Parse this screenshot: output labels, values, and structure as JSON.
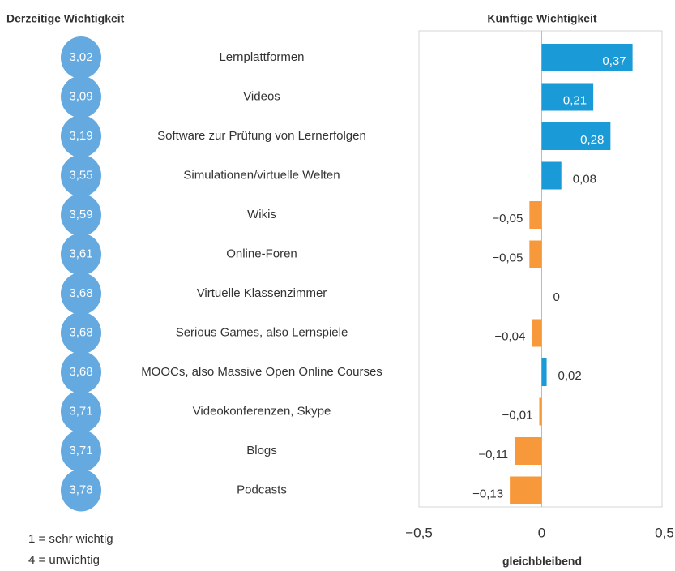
{
  "chart_data": [
    {
      "type": "dot",
      "title": "Derzeitige Wichtigkeit",
      "categories": [
        "Lernplattformen",
        "Videos",
        "Software zur Prüfung von Lernerfolgen",
        "Simulationen/virtuelle Welten",
        "Wikis",
        "Online-Foren",
        "Virtuelle Klassenzimmer",
        "Serious Games, also Lernspiele",
        "MOOCs, also Massive Open Online Courses",
        "Videokonferenzen, Skype",
        "Blogs",
        "Podcasts"
      ],
      "values": [
        3.02,
        3.09,
        3.19,
        3.55,
        3.59,
        3.61,
        3.68,
        3.68,
        3.68,
        3.71,
        3.71,
        3.78
      ],
      "value_labels": [
        "3,02",
        "3,09",
        "3,19",
        "3,55",
        "3,59",
        "3,61",
        "3,68",
        "3,68",
        "3,68",
        "3,71",
        "3,71",
        "3,78"
      ],
      "color": "#64a9e0",
      "notes": [
        "1 = sehr wichtig",
        "4 = unwichtig"
      ]
    },
    {
      "type": "bar",
      "orientation": "horizontal",
      "title": "Künftige Wichtigkeit",
      "xlabel": "gleichbleibend",
      "values": [
        0.37,
        0.21,
        0.28,
        0.08,
        -0.05,
        -0.05,
        0,
        -0.04,
        0.02,
        -0.01,
        -0.11,
        -0.13
      ],
      "value_labels": [
        "0,37",
        "0,21",
        "0,28",
        "0,08",
        "−0,05",
        "−0,05",
        "0",
        "−0,04",
        "0,02",
        "−0,01",
        "−0,11",
        "−0,13"
      ],
      "positive_color": "#1a9ad6",
      "negative_color": "#f7993a",
      "xlim": [
        -0.5,
        0.5
      ],
      "xticks": [
        {
          "value": -0.5,
          "label": "−0,5"
        },
        0,
        {
          "value": 0.5,
          "label": "0,5"
        }
      ]
    }
  ]
}
